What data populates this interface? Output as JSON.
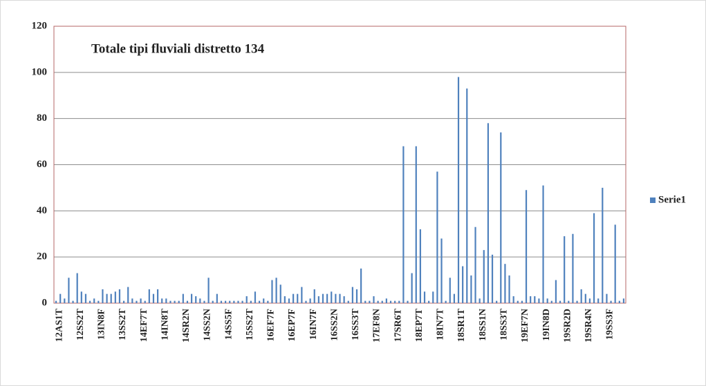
{
  "chart_data": {
    "type": "bar",
    "title": "Totale tipi fluviali distretto 134",
    "categories": [
      "12AS1T",
      null,
      null,
      null,
      null,
      "12SS2T",
      null,
      null,
      null,
      null,
      "13IN8F",
      null,
      null,
      null,
      null,
      "13SS2T",
      null,
      null,
      null,
      null,
      "14EF7T",
      null,
      null,
      null,
      null,
      "14IN8T",
      null,
      null,
      null,
      null,
      "14SR2N",
      null,
      null,
      null,
      null,
      "14SS2N",
      null,
      null,
      null,
      null,
      "14SS5F",
      null,
      null,
      null,
      null,
      "15SS2T",
      null,
      null,
      null,
      null,
      "16EF7F",
      null,
      null,
      null,
      null,
      "16EP7F",
      null,
      null,
      null,
      null,
      "16IN7F",
      null,
      null,
      null,
      null,
      "16SS2N",
      null,
      null,
      null,
      null,
      "16SS3T",
      null,
      null,
      null,
      null,
      "17EF8N",
      null,
      null,
      null,
      null,
      "17SR6T",
      null,
      null,
      null,
      null,
      "18EP7T",
      null,
      null,
      null,
      null,
      "18IN7T",
      null,
      null,
      null,
      null,
      "18SR1T",
      null,
      null,
      null,
      null,
      "18SS1N",
      null,
      null,
      null,
      null,
      "18SS3T",
      null,
      null,
      null,
      null,
      "19EF7N",
      null,
      null,
      null,
      null,
      "19IN8D",
      null,
      null,
      null,
      null,
      "19SR2D",
      null,
      null,
      null,
      null,
      "19SR4N",
      null,
      null,
      null,
      null,
      "19SS3F",
      null,
      null,
      null,
      null
    ],
    "series": [
      {
        "name": "Serie1",
        "color": "#4f81bd",
        "values": [
          1,
          4,
          2,
          11,
          1,
          13,
          5,
          4,
          1,
          2,
          1,
          6,
          4,
          4,
          5,
          6,
          1,
          7,
          2,
          1,
          2,
          1,
          6,
          4,
          6,
          2,
          2,
          1,
          1,
          1,
          4,
          1,
          4,
          3,
          2,
          1,
          11,
          1,
          4,
          1,
          1,
          1,
          1,
          1,
          1,
          3,
          1,
          5,
          1,
          2,
          1,
          10,
          11,
          8,
          3,
          2,
          4,
          4,
          7,
          1,
          2,
          6,
          3,
          4,
          4,
          5,
          4,
          4,
          3,
          1,
          7,
          6,
          15,
          1,
          1,
          3,
          1,
          1,
          2,
          1,
          1,
          1,
          68,
          1,
          13,
          68,
          32,
          5,
          1,
          5,
          57,
          28,
          1,
          11,
          4,
          98,
          16,
          93,
          12,
          33,
          2,
          23,
          78,
          21,
          1,
          74,
          17,
          12,
          3,
          1,
          1,
          49,
          3,
          3,
          2,
          51,
          2,
          1,
          10,
          1,
          29,
          1,
          30,
          1,
          6,
          4,
          2,
          39,
          2,
          50,
          4,
          1,
          34,
          1,
          2
        ]
      }
    ],
    "ylim": [
      0,
      120
    ],
    "yticks": [
      0,
      20,
      40,
      60,
      80,
      100,
      120
    ],
    "grid": true,
    "legend": "right"
  }
}
